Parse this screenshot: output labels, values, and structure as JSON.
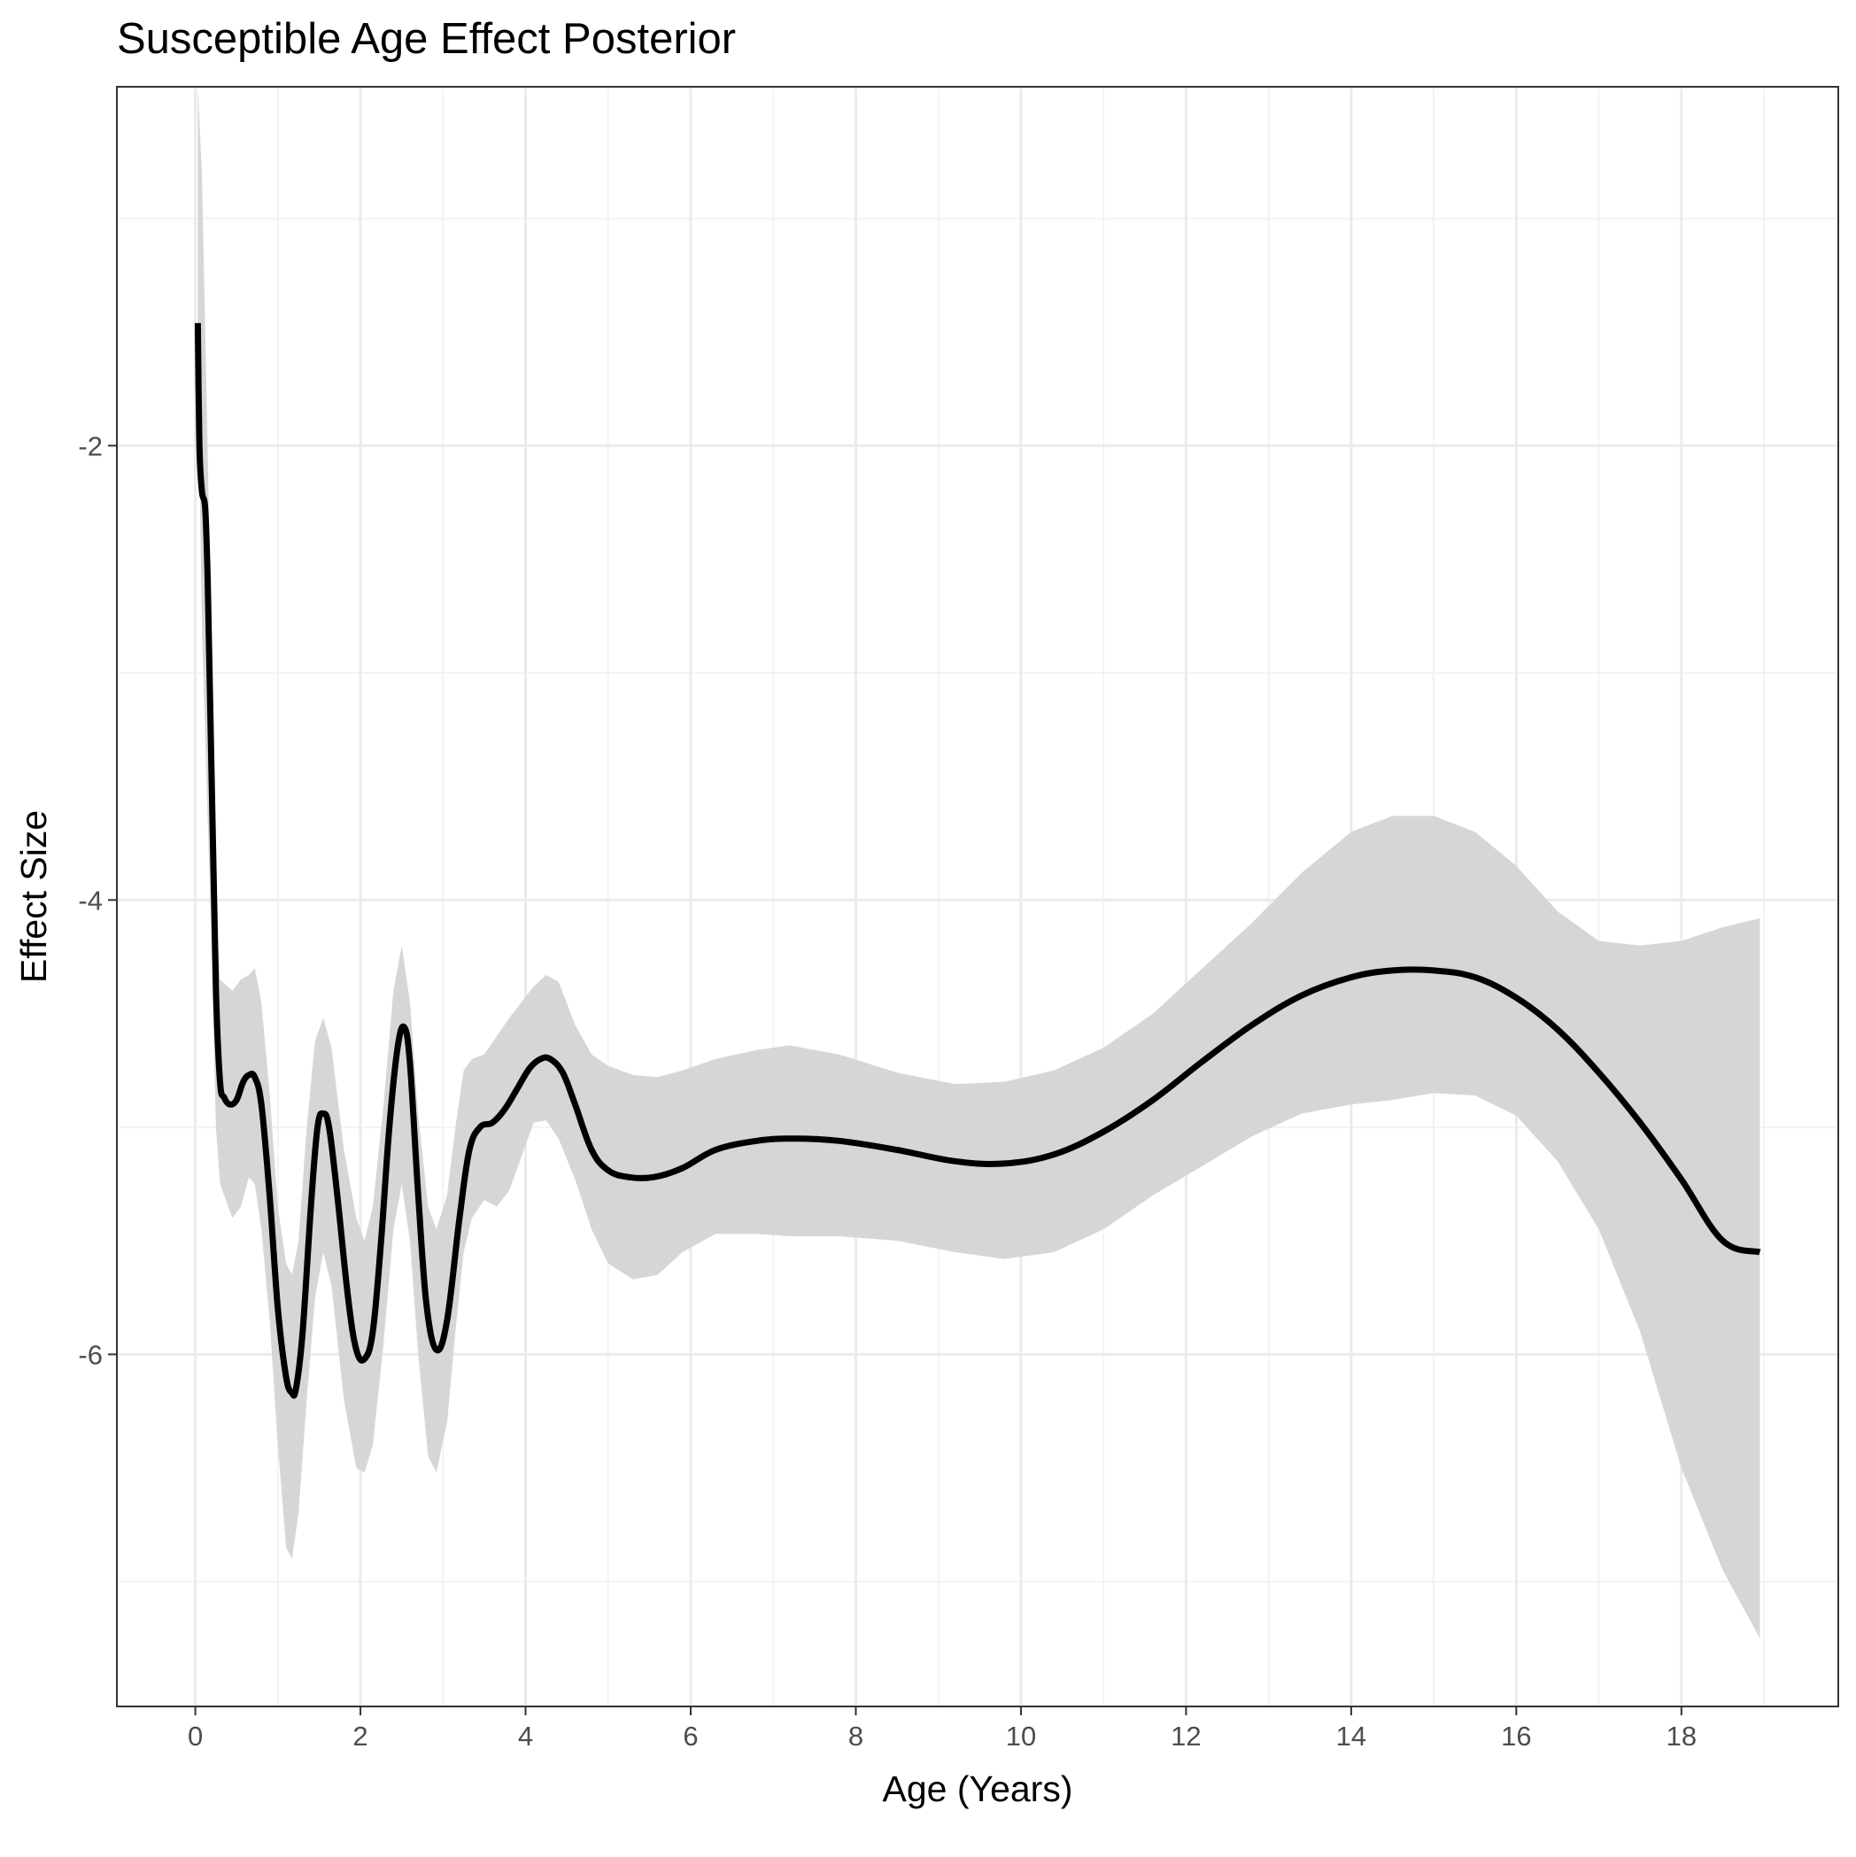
{
  "chart_data": {
    "type": "line",
    "title": "Susceptible Age Effect Posterior",
    "xlabel": "Age (Years)",
    "ylabel": "Effect Size",
    "xlim": [
      -0.95,
      19.9
    ],
    "ylim": [
      -7.55,
      -0.42
    ],
    "x_ticks": [
      0,
      2,
      4,
      6,
      8,
      10,
      12,
      14,
      16,
      18
    ],
    "y_ticks": [
      -2,
      -4,
      -6
    ],
    "grid": true,
    "legend": "none",
    "colors": {
      "line": "#000000",
      "ribbon": "#d6d6d6",
      "grid_major": "#ebebeb",
      "grid_minor": "#f3f3f3",
      "panel_border": "#333333"
    },
    "series": [
      {
        "points": [
          [
            0.03,
            -1.46
          ],
          [
            0.05,
            -2.0
          ],
          [
            0.08,
            -2.2
          ],
          [
            0.12,
            -2.28
          ],
          [
            0.15,
            -2.6
          ],
          [
            0.2,
            -3.5
          ],
          [
            0.25,
            -4.4
          ],
          [
            0.3,
            -4.8
          ],
          [
            0.35,
            -4.87
          ],
          [
            0.42,
            -4.9
          ],
          [
            0.5,
            -4.88
          ],
          [
            0.58,
            -4.8
          ],
          [
            0.65,
            -4.77
          ],
          [
            0.72,
            -4.78
          ],
          [
            0.8,
            -4.9
          ],
          [
            0.9,
            -5.3
          ],
          [
            1.0,
            -5.8
          ],
          [
            1.1,
            -6.1
          ],
          [
            1.17,
            -6.17
          ],
          [
            1.22,
            -6.15
          ],
          [
            1.3,
            -5.9
          ],
          [
            1.4,
            -5.35
          ],
          [
            1.48,
            -5.0
          ],
          [
            1.55,
            -4.94
          ],
          [
            1.62,
            -5.0
          ],
          [
            1.72,
            -5.3
          ],
          [
            1.85,
            -5.75
          ],
          [
            1.95,
            -5.98
          ],
          [
            2.05,
            -6.02
          ],
          [
            2.15,
            -5.9
          ],
          [
            2.25,
            -5.5
          ],
          [
            2.35,
            -5.0
          ],
          [
            2.45,
            -4.65
          ],
          [
            2.53,
            -4.56
          ],
          [
            2.6,
            -4.72
          ],
          [
            2.7,
            -5.3
          ],
          [
            2.8,
            -5.78
          ],
          [
            2.92,
            -5.98
          ],
          [
            3.05,
            -5.85
          ],
          [
            3.2,
            -5.4
          ],
          [
            3.32,
            -5.1
          ],
          [
            3.45,
            -5.0
          ],
          [
            3.6,
            -4.98
          ],
          [
            3.75,
            -4.92
          ],
          [
            3.9,
            -4.83
          ],
          [
            4.05,
            -4.74
          ],
          [
            4.18,
            -4.7
          ],
          [
            4.3,
            -4.7
          ],
          [
            4.45,
            -4.76
          ],
          [
            4.6,
            -4.9
          ],
          [
            4.8,
            -5.1
          ],
          [
            5.0,
            -5.19
          ],
          [
            5.25,
            -5.22
          ],
          [
            5.55,
            -5.22
          ],
          [
            5.9,
            -5.18
          ],
          [
            6.3,
            -5.1
          ],
          [
            6.8,
            -5.06
          ],
          [
            7.25,
            -5.05
          ],
          [
            7.8,
            -5.06
          ],
          [
            8.5,
            -5.1
          ],
          [
            9.2,
            -5.15
          ],
          [
            9.8,
            -5.16
          ],
          [
            10.4,
            -5.12
          ],
          [
            11.0,
            -5.02
          ],
          [
            11.6,
            -4.88
          ],
          [
            12.2,
            -4.71
          ],
          [
            12.8,
            -4.55
          ],
          [
            13.4,
            -4.42
          ],
          [
            14.0,
            -4.34
          ],
          [
            14.5,
            -4.31
          ],
          [
            15.0,
            -4.31
          ],
          [
            15.5,
            -4.34
          ],
          [
            16.0,
            -4.43
          ],
          [
            16.5,
            -4.57
          ],
          [
            17.0,
            -4.76
          ],
          [
            17.5,
            -4.98
          ],
          [
            18.0,
            -5.23
          ],
          [
            18.5,
            -5.5
          ],
          [
            18.95,
            -5.55
          ]
        ]
      }
    ],
    "ribbon": {
      "upper": [
        [
          0.03,
          -0.42
        ],
        [
          0.08,
          -0.8
        ],
        [
          0.12,
          -1.5
        ],
        [
          0.18,
          -2.6
        ],
        [
          0.25,
          -4.0
        ],
        [
          0.3,
          -4.35
        ],
        [
          0.45,
          -4.4
        ],
        [
          0.55,
          -4.35
        ],
        [
          0.65,
          -4.33
        ],
        [
          0.72,
          -4.3
        ],
        [
          0.8,
          -4.45
        ],
        [
          0.9,
          -4.85
        ],
        [
          1.0,
          -5.35
        ],
        [
          1.1,
          -5.6
        ],
        [
          1.17,
          -5.65
        ],
        [
          1.25,
          -5.5
        ],
        [
          1.35,
          -5.0
        ],
        [
          1.45,
          -4.62
        ],
        [
          1.55,
          -4.52
        ],
        [
          1.65,
          -4.65
        ],
        [
          1.8,
          -5.1
        ],
        [
          1.95,
          -5.4
        ],
        [
          2.05,
          -5.5
        ],
        [
          2.15,
          -5.35
        ],
        [
          2.28,
          -4.9
        ],
        [
          2.4,
          -4.4
        ],
        [
          2.5,
          -4.2
        ],
        [
          2.6,
          -4.45
        ],
        [
          2.7,
          -4.95
        ],
        [
          2.82,
          -5.35
        ],
        [
          2.92,
          -5.45
        ],
        [
          3.05,
          -5.3
        ],
        [
          3.15,
          -5.0
        ],
        [
          3.25,
          -4.75
        ],
        [
          3.35,
          -4.7
        ],
        [
          3.5,
          -4.68
        ],
        [
          3.65,
          -4.6
        ],
        [
          3.8,
          -4.52
        ],
        [
          3.95,
          -4.45
        ],
        [
          4.1,
          -4.38
        ],
        [
          4.25,
          -4.33
        ],
        [
          4.4,
          -4.36
        ],
        [
          4.6,
          -4.55
        ],
        [
          4.8,
          -4.68
        ],
        [
          5.0,
          -4.73
        ],
        [
          5.3,
          -4.77
        ],
        [
          5.6,
          -4.78
        ],
        [
          5.9,
          -4.75
        ],
        [
          6.3,
          -4.7
        ],
        [
          6.8,
          -4.66
        ],
        [
          7.2,
          -4.64
        ],
        [
          7.8,
          -4.68
        ],
        [
          8.5,
          -4.76
        ],
        [
          9.2,
          -4.81
        ],
        [
          9.8,
          -4.8
        ],
        [
          10.4,
          -4.75
        ],
        [
          11.0,
          -4.65
        ],
        [
          11.6,
          -4.5
        ],
        [
          12.2,
          -4.3
        ],
        [
          12.8,
          -4.1
        ],
        [
          13.4,
          -3.88
        ],
        [
          14.0,
          -3.7
        ],
        [
          14.5,
          -3.63
        ],
        [
          15.0,
          -3.63
        ],
        [
          15.5,
          -3.7
        ],
        [
          16.0,
          -3.85
        ],
        [
          16.5,
          -4.05
        ],
        [
          17.0,
          -4.18
        ],
        [
          17.5,
          -4.2
        ],
        [
          18.0,
          -4.18
        ],
        [
          18.5,
          -4.12
        ],
        [
          18.95,
          -4.08
        ]
      ],
      "lower": [
        [
          0.03,
          -1.6
        ],
        [
          0.08,
          -2.8
        ],
        [
          0.12,
          -3.3
        ],
        [
          0.18,
          -4.0
        ],
        [
          0.25,
          -5.0
        ],
        [
          0.3,
          -5.25
        ],
        [
          0.45,
          -5.4
        ],
        [
          0.55,
          -5.35
        ],
        [
          0.65,
          -5.22
        ],
        [
          0.72,
          -5.25
        ],
        [
          0.8,
          -5.45
        ],
        [
          0.9,
          -5.85
        ],
        [
          1.0,
          -6.4
        ],
        [
          1.1,
          -6.85
        ],
        [
          1.17,
          -6.9
        ],
        [
          1.25,
          -6.7
        ],
        [
          1.35,
          -6.2
        ],
        [
          1.45,
          -5.75
        ],
        [
          1.55,
          -5.55
        ],
        [
          1.65,
          -5.7
        ],
        [
          1.8,
          -6.2
        ],
        [
          1.95,
          -6.5
        ],
        [
          2.05,
          -6.52
        ],
        [
          2.15,
          -6.4
        ],
        [
          2.28,
          -5.95
        ],
        [
          2.4,
          -5.45
        ],
        [
          2.5,
          -5.25
        ],
        [
          2.6,
          -5.5
        ],
        [
          2.7,
          -6.0
        ],
        [
          2.82,
          -6.45
        ],
        [
          2.92,
          -6.52
        ],
        [
          3.05,
          -6.3
        ],
        [
          3.15,
          -5.9
        ],
        [
          3.25,
          -5.55
        ],
        [
          3.35,
          -5.4
        ],
        [
          3.5,
          -5.32
        ],
        [
          3.65,
          -5.35
        ],
        [
          3.8,
          -5.28
        ],
        [
          3.95,
          -5.13
        ],
        [
          4.1,
          -4.98
        ],
        [
          4.25,
          -4.97
        ],
        [
          4.4,
          -5.05
        ],
        [
          4.6,
          -5.23
        ],
        [
          4.8,
          -5.45
        ],
        [
          5.0,
          -5.6
        ],
        [
          5.3,
          -5.67
        ],
        [
          5.6,
          -5.65
        ],
        [
          5.9,
          -5.55
        ],
        [
          6.3,
          -5.47
        ],
        [
          6.8,
          -5.47
        ],
        [
          7.2,
          -5.48
        ],
        [
          7.8,
          -5.48
        ],
        [
          8.5,
          -5.5
        ],
        [
          9.2,
          -5.55
        ],
        [
          9.8,
          -5.58
        ],
        [
          10.4,
          -5.55
        ],
        [
          11.0,
          -5.45
        ],
        [
          11.6,
          -5.3
        ],
        [
          12.2,
          -5.17
        ],
        [
          12.8,
          -5.04
        ],
        [
          13.4,
          -4.94
        ],
        [
          14.0,
          -4.9
        ],
        [
          14.5,
          -4.88
        ],
        [
          15.0,
          -4.85
        ],
        [
          15.5,
          -4.86
        ],
        [
          16.0,
          -4.95
        ],
        [
          16.5,
          -5.15
        ],
        [
          17.0,
          -5.45
        ],
        [
          17.5,
          -5.9
        ],
        [
          18.0,
          -6.5
        ],
        [
          18.5,
          -6.95
        ],
        [
          18.95,
          -7.25
        ]
      ]
    }
  }
}
